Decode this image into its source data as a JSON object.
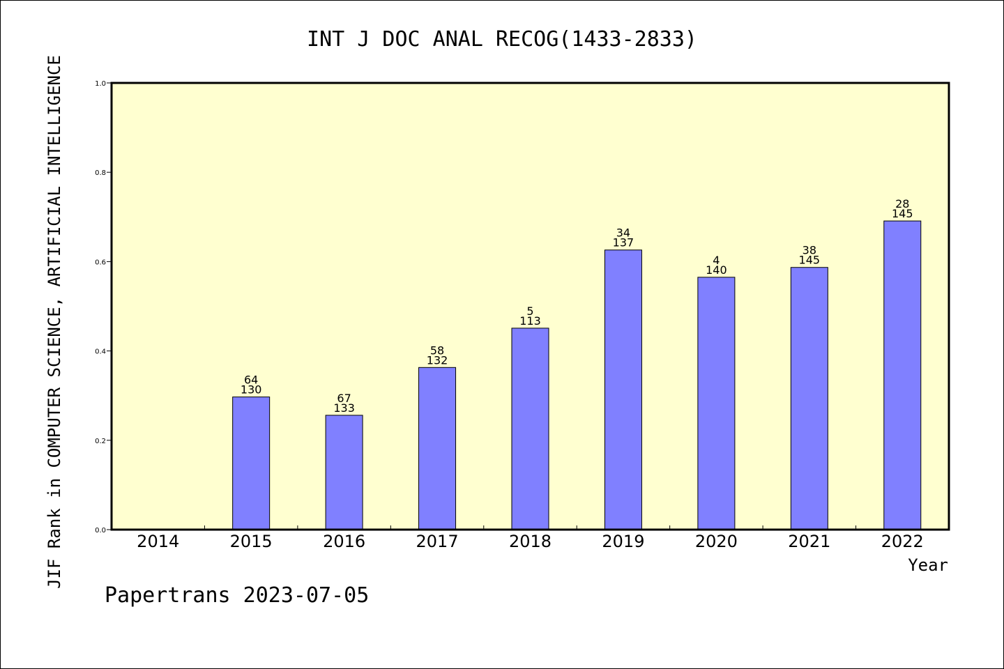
{
  "chart_data": {
    "type": "bar",
    "title": "INT J DOC ANAL RECOG(1433-2833)",
    "xlabel": "Year",
    "ylabel": "JIF Rank in COMPUTER SCIENCE, ARTIFICIAL INTELLIGENCE",
    "categories": [
      "2014",
      "2015",
      "2016",
      "2017",
      "2018",
      "2019",
      "2020",
      "2021",
      "2022"
    ],
    "values": [
      null,
      0.297,
      0.256,
      0.363,
      0.451,
      0.626,
      0.565,
      0.587,
      0.691
    ],
    "bar_labels": [
      null,
      [
        "64",
        "130"
      ],
      [
        "67",
        "133"
      ],
      [
        "58",
        "132"
      ],
      [
        "5",
        "113"
      ],
      [
        "34",
        "137"
      ],
      [
        "4",
        "140"
      ],
      [
        "38",
        "145"
      ],
      [
        "28",
        "145"
      ]
    ],
    "ylim": [
      0.0,
      1.0
    ],
    "yticks": [
      "0.0",
      "0.2",
      "0.4",
      "0.6",
      "0.8",
      "1.0"
    ],
    "grid": false,
    "legend": "none",
    "colors": {
      "bar_fill": "#8080ff",
      "plot_background": "#ffffd0",
      "axes": "#000000"
    }
  },
  "footer": "Papertrans 2023-07-05"
}
